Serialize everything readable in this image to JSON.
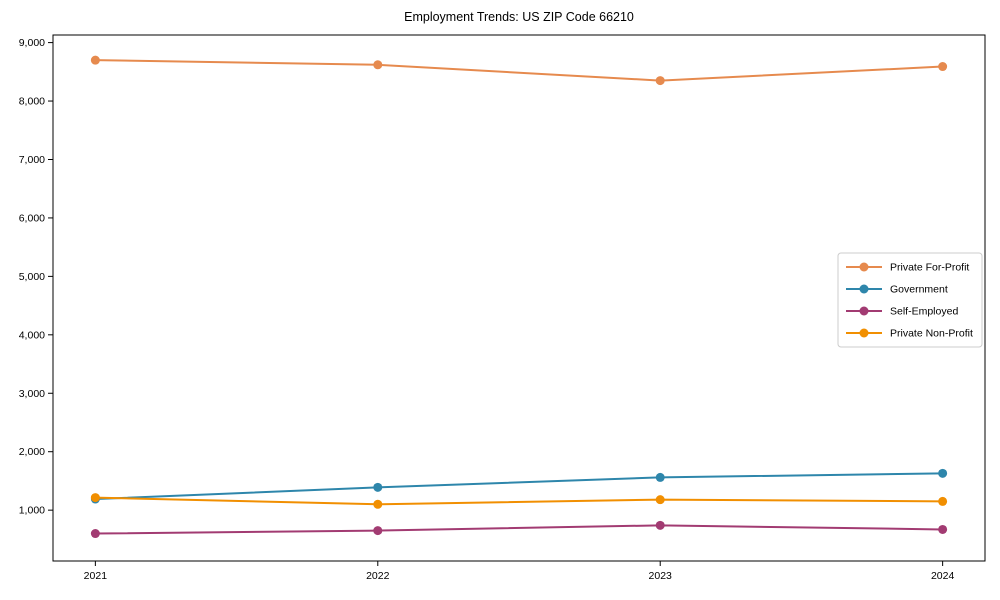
{
  "chart_data": {
    "type": "line",
    "title": "Employment Trends: US ZIP Code 66210",
    "x": [
      2021,
      2022,
      2023,
      2024
    ],
    "xtick_labels": [
      "2021",
      "2022",
      "2023",
      "2024"
    ],
    "series": [
      {
        "name": "Private For-Profit",
        "color": "#E68A4E",
        "values": [
          8700,
          8620,
          8350,
          8590
        ]
      },
      {
        "name": "Government",
        "color": "#2E86AB",
        "values": [
          1190,
          1390,
          1560,
          1630
        ]
      },
      {
        "name": "Self-Employed",
        "color": "#A23B72",
        "values": [
          600,
          650,
          740,
          670
        ]
      },
      {
        "name": "Private Non-Profit",
        "color": "#F18F01",
        "values": [
          1215,
          1100,
          1180,
          1150
        ]
      }
    ],
    "xlabel": "",
    "ylabel": "",
    "xlim": [
      2020.85,
      2024.15
    ],
    "ylim": [
      130,
      9130
    ],
    "yticks": [
      1000,
      2000,
      3000,
      4000,
      5000,
      6000,
      7000,
      8000,
      9000
    ],
    "ytick_labels": [
      "1,000",
      "2,000",
      "3,000",
      "4,000",
      "5,000",
      "6,000",
      "7,000",
      "8,000",
      "9,000"
    ],
    "grid": false,
    "legend_position": "center right",
    "marker": "circle",
    "line_width": 2,
    "marker_radius": 4.5,
    "axis_color": "#000000",
    "text_color": "#000000",
    "legend_border_color": "#cccccc",
    "background": "#ffffff"
  }
}
